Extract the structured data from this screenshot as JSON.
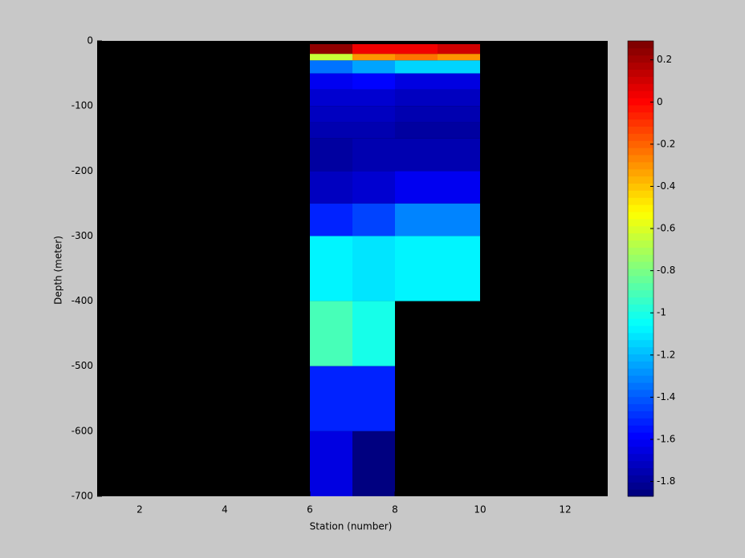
{
  "chart_data": {
    "type": "heatmap",
    "xlabel": "Station (number)",
    "ylabel": "Depth (meter)",
    "xlim": [
      1,
      13
    ],
    "xticks": [
      2,
      4,
      6,
      8,
      10,
      12
    ],
    "ylim": [
      -700,
      0
    ],
    "yticks": [
      0,
      -100,
      -200,
      -300,
      -400,
      -500,
      -600,
      -700
    ],
    "x_edges": [
      6,
      7,
      8,
      9,
      10
    ],
    "y_edges": [
      -5,
      -20,
      -30,
      -50,
      -75,
      -100,
      -125,
      -150,
      -200,
      -250,
      -300,
      -400,
      -500,
      -600,
      -700
    ],
    "values": [
      [
        0.25,
        0.05,
        0.05,
        0.1
      ],
      [
        -0.65,
        -0.3,
        -0.25,
        -0.3
      ],
      [
        -1.35,
        -1.25,
        -1.15,
        -1.15
      ],
      [
        -1.62,
        -1.58,
        -1.65,
        -1.65
      ],
      [
        -1.68,
        -1.68,
        -1.72,
        -1.72
      ],
      [
        -1.72,
        -1.72,
        -1.75,
        -1.75
      ],
      [
        -1.75,
        -1.75,
        -1.78,
        -1.78
      ],
      [
        -1.8,
        -1.75,
        -1.75,
        -1.75
      ],
      [
        -1.72,
        -1.67,
        -1.62,
        -1.62
      ],
      [
        -1.5,
        -1.45,
        -1.32,
        -1.32
      ],
      [
        -1.08,
        -1.12,
        -1.08,
        -1.08
      ],
      [
        -0.9,
        -1.0,
        null,
        null
      ],
      [
        -1.5,
        -1.52,
        null,
        null
      ],
      [
        -1.65,
        -1.87,
        null,
        null
      ]
    ],
    "colormap": "jet",
    "background": "#000000",
    "clim": [
      -1.87,
      0.29
    ],
    "cticks": [
      0.2,
      0,
      -0.2,
      -0.4,
      -0.6,
      -0.8,
      -1,
      -1.2,
      -1.4,
      -1.6,
      -1.8
    ]
  }
}
